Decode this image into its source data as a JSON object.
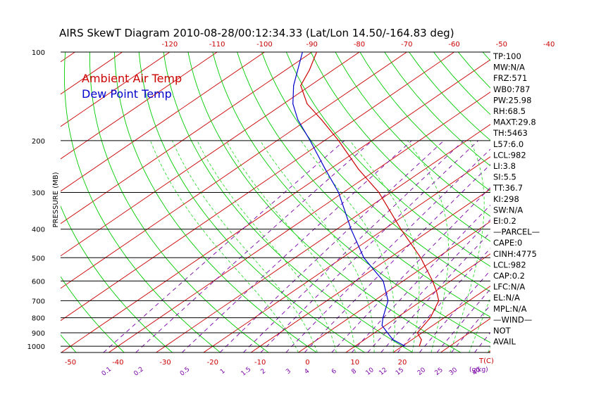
{
  "chart_data": {
    "type": "skewt",
    "title": "AIRS SkewT Diagram 2010-08-28/00:12:34.33 (Lat/Lon 14.50/-164.83 deg)",
    "ylabel": "PRESSURE (MB)",
    "xlabel": "T(C)",
    "mixing_ratio_unit": "(g/kg)",
    "pressure_range": [
      1050,
      100
    ],
    "pressure_ticks": [
      100,
      200,
      300,
      400,
      500,
      600,
      700,
      800,
      900,
      1000
    ],
    "top_temperature_ticks": [
      -120,
      -110,
      -100,
      -90,
      -80,
      -70,
      -60,
      -50,
      -40
    ],
    "bottom_temperature_ticks": [
      -50,
      -40,
      -30,
      -20,
      -10,
      0,
      10,
      20
    ],
    "mixing_ratio_ticks": [
      "0.1",
      "0.2",
      "0.5",
      "1",
      "1.5",
      "2",
      "3",
      "4",
      "6",
      "8",
      "10",
      "12",
      "15",
      "20",
      "25",
      "30",
      "40"
    ],
    "legend": [
      {
        "label": "Ambient Air Temp",
        "color": "#cc0000"
      },
      {
        "label": "Dew Point Temp",
        "color": "#0000cc"
      }
    ],
    "series": [
      {
        "name": "Ambient Air Temp",
        "color": "#cc0000",
        "points": [
          {
            "p": 1000,
            "t": 23.6
          },
          {
            "p": 950,
            "t": 22.0
          },
          {
            "p": 900,
            "t": 19.0
          },
          {
            "p": 800,
            "t": 17.1
          },
          {
            "p": 700,
            "t": 13.6
          },
          {
            "p": 650,
            "t": 10.2
          },
          {
            "p": 600,
            "t": 6.2
          },
          {
            "p": 500,
            "t": -3.5
          },
          {
            "p": 400,
            "t": -16.5
          },
          {
            "p": 300,
            "t": -32.5
          },
          {
            "p": 250,
            "t": -44.0
          },
          {
            "p": 200,
            "t": -57.0
          },
          {
            "p": 170,
            "t": -67.0
          },
          {
            "p": 150,
            "t": -75.0
          },
          {
            "p": 130,
            "t": -82.0
          },
          {
            "p": 115,
            "t": -85.0
          },
          {
            "p": 100,
            "t": -89.0
          }
        ]
      },
      {
        "name": "Dew Point Temp",
        "color": "#0000cc",
        "points": [
          {
            "p": 1000,
            "t": 20.6
          },
          {
            "p": 950,
            "t": 16.0
          },
          {
            "p": 900,
            "t": 12.7
          },
          {
            "p": 850,
            "t": 9.3
          },
          {
            "p": 800,
            "t": 7.1
          },
          {
            "p": 700,
            "t": 2.9
          },
          {
            "p": 600,
            "t": -4.2
          },
          {
            "p": 500,
            "t": -15.5
          },
          {
            "p": 400,
            "t": -27.0
          },
          {
            "p": 300,
            "t": -41.0
          },
          {
            "p": 250,
            "t": -51.0
          },
          {
            "p": 200,
            "t": -63.0
          },
          {
            "p": 170,
            "t": -72.0
          },
          {
            "p": 150,
            "t": -78.0
          },
          {
            "p": 130,
            "t": -83.5
          },
          {
            "p": 100,
            "t": -92.0
          }
        ]
      }
    ],
    "indices": [
      "TP:100",
      "MW:N/A",
      "FRZ:571",
      "WB0:787",
      "PW:25.98",
      "RH:68.5",
      "MAXT:29.8",
      "TH:5463",
      "L57:6.0",
      "LCL:982",
      "LI:3.8",
      "SI:5.5",
      "TT:36.7",
      "KI:298",
      "SW:N/A",
      "EI:0.2",
      "—PARCEL—",
      "CAPE:0",
      "CINH:4775",
      "LCL:982",
      "CAP:0.2",
      "LFC:N/A",
      "EL:N/A",
      "MPL:N/A",
      "—WIND—",
      "NOT",
      "AVAIL"
    ]
  },
  "colors": {
    "isotherm": "#cc0000",
    "dry_adiabat": "#00cc00",
    "moist_adiabat": "#33dd33",
    "mixing_ratio": "#7a00a6",
    "isobar": "#000000"
  }
}
